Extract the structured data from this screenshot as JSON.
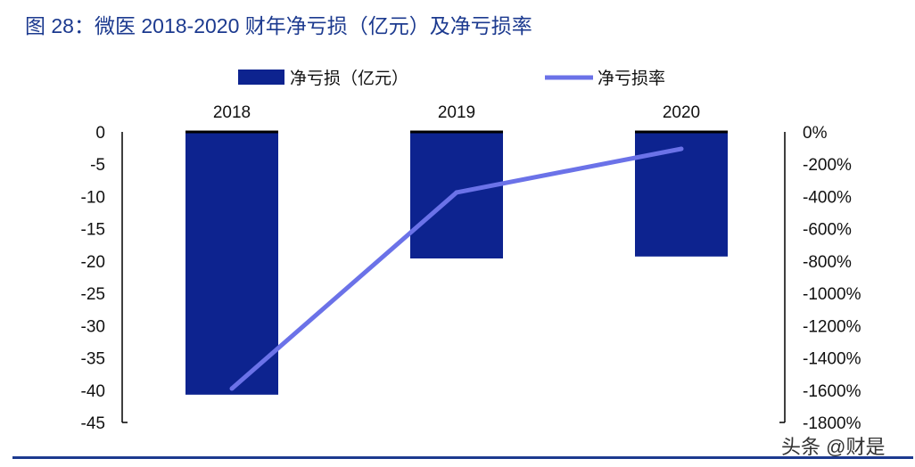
{
  "title": "图 28：微医 2018-2020 财年净亏损（亿元）及净亏损率",
  "watermark": "头条 @财是",
  "chart_data": {
    "type": "bar+line",
    "categories": [
      "2018",
      "2019",
      "2020"
    ],
    "series": [
      {
        "name": "净亏损（亿元）",
        "type": "bar",
        "axis": "left",
        "color": "#0d238f",
        "values": [
          -40.7,
          -19.6,
          -19.3
        ]
      },
      {
        "name": "净亏损率",
        "type": "line",
        "axis": "right",
        "color": "#6b72e8",
        "values": [
          -1590,
          -375,
          -105
        ]
      }
    ],
    "left_axis": {
      "ylim": [
        -45,
        0
      ],
      "ticks": [
        "0",
        "-5",
        "-10",
        "-15",
        "-20",
        "-25",
        "-30",
        "-35",
        "-40",
        "-45"
      ]
    },
    "right_axis": {
      "ylim": [
        -1800,
        0
      ],
      "unit": "%",
      "ticks": [
        "0%",
        "-200%",
        "-400%",
        "-600%",
        "-800%",
        "-1000%",
        "-1200%",
        "-1400%",
        "-1600%",
        "-1800%"
      ]
    },
    "legend_position": "top",
    "grid": false
  }
}
